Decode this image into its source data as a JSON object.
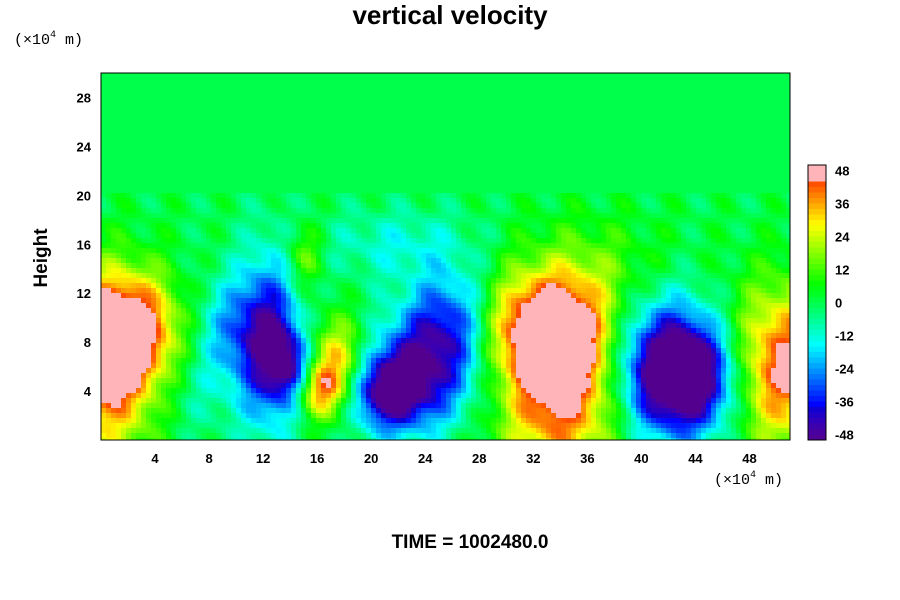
{
  "chart_data": {
    "type": "heatmap",
    "title": "vertical velocity",
    "ylabel": "Height",
    "x_unit": {
      "prefix": "(×10",
      "exp": "4",
      "suffix": " m)"
    },
    "y_unit": {
      "prefix": "(×10",
      "exp": "4",
      "suffix": " m)"
    },
    "xlim": [
      0,
      51
    ],
    "ylim": [
      0,
      30
    ],
    "x_ticks": [
      4,
      8,
      12,
      16,
      20,
      24,
      28,
      32,
      36,
      40,
      44,
      48
    ],
    "y_ticks": [
      4,
      8,
      12,
      16,
      20,
      24,
      28
    ],
    "colorbar": {
      "range": [
        -50,
        50
      ],
      "ticks": [
        48,
        36,
        24,
        12,
        0,
        -12,
        -24,
        -36,
        -48
      ]
    },
    "features": [
      {
        "x": 0.5,
        "y": 6,
        "value": 48,
        "rx": 3,
        "ry": 5
      },
      {
        "x": 2,
        "y": 9,
        "value": 40,
        "rx": 2.5,
        "ry": 3
      },
      {
        "x": 34,
        "y": 5,
        "value": 52,
        "rx": 3.5,
        "ry": 5.5
      },
      {
        "x": 33,
        "y": 9,
        "value": 38,
        "rx": 3,
        "ry": 3
      },
      {
        "x": 50.5,
        "y": 6,
        "value": 48,
        "rx": 3,
        "ry": 4.5
      },
      {
        "x": 17.5,
        "y": 6,
        "value": 36,
        "rx": 1.6,
        "ry": 2.6
      },
      {
        "x": 16,
        "y": 4,
        "value": 28,
        "rx": 1.2,
        "ry": 1.5
      },
      {
        "x": 41.5,
        "y": 6,
        "value": -50,
        "rx": 3,
        "ry": 4
      },
      {
        "x": 44,
        "y": 5,
        "value": -40,
        "rx": 2.5,
        "ry": 3
      },
      {
        "x": 21,
        "y": 4,
        "value": -48,
        "rx": 2,
        "ry": 2.2
      },
      {
        "x": 24,
        "y": 6,
        "value": -40,
        "rx": 2.5,
        "ry": 3.5
      },
      {
        "x": 12.5,
        "y": 8,
        "value": -38,
        "rx": 1.6,
        "ry": 5
      },
      {
        "x": 14,
        "y": 6,
        "value": -34,
        "rx": 1.2,
        "ry": 2
      },
      {
        "x": 10,
        "y": 9,
        "value": -22,
        "rx": 2,
        "ry": 3
      },
      {
        "x": 26,
        "y": 10,
        "value": -24,
        "rx": 2,
        "ry": 3
      },
      {
        "x": 15,
        "y": 15,
        "value": 18,
        "rx": 1,
        "ry": 1.8
      },
      {
        "x": 6,
        "y": 4,
        "value": -10,
        "rx": 3,
        "ry": 3
      },
      {
        "x": 29,
        "y": 5,
        "value": -8,
        "rx": 2,
        "ry": 3
      },
      {
        "x": 38,
        "y": 14,
        "value": 8,
        "rx": 4,
        "ry": 3
      },
      {
        "x": 22,
        "y": 16,
        "value": -12,
        "rx": 4,
        "ry": 2
      }
    ]
  },
  "time_label": "TIME = 1002480.0"
}
